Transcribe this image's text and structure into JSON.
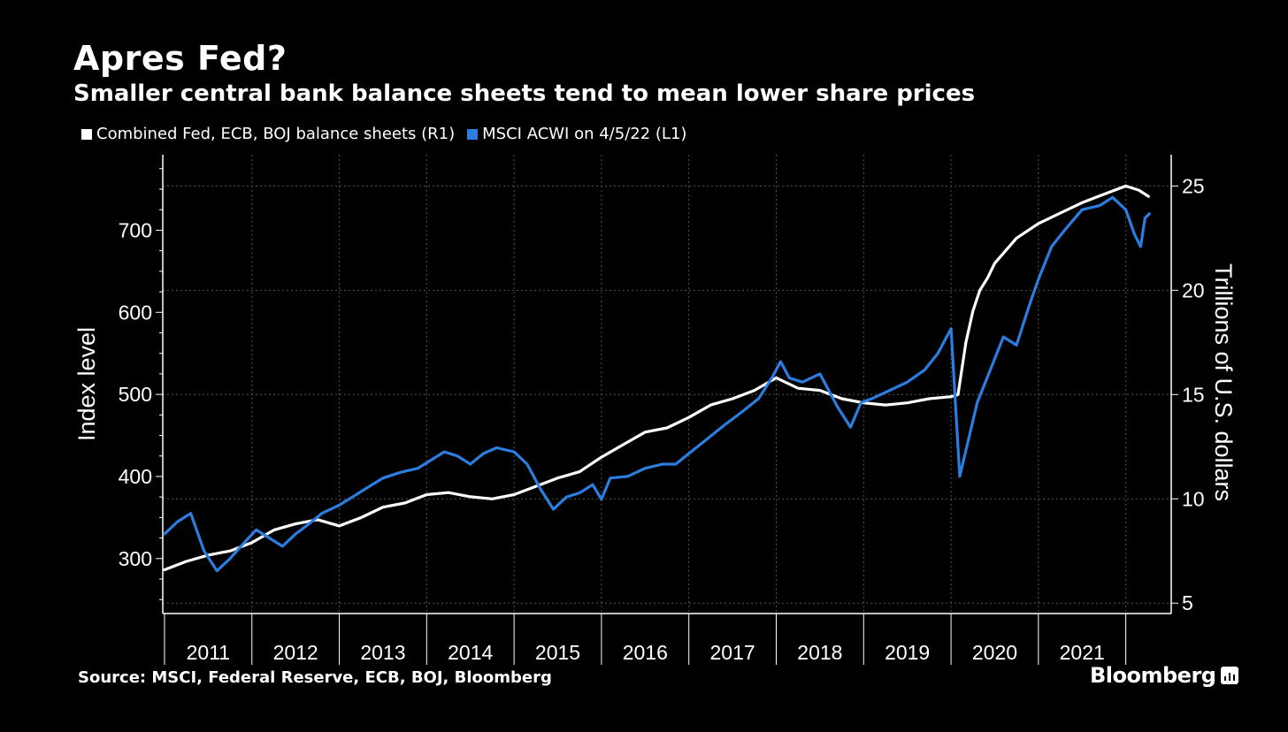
{
  "title": "Apres Fed?",
  "subtitle": "Smaller central bank balance sheets tend to mean lower share prices",
  "source": "Source: MSCI, Federal Reserve, ECB, BOJ, Bloomberg",
  "brand": "Bloomberg",
  "colors": {
    "background": "#000000",
    "balance_sheets": "#ffffff",
    "msci": "#2b7de0",
    "grid": "#555555"
  },
  "chart_data": {
    "type": "line",
    "legend_position": "top-left",
    "grid": true,
    "x_axis": {
      "range": [
        2010.98,
        2022.52
      ],
      "ticks": [
        "2011",
        "2012",
        "2013",
        "2014",
        "2015",
        "2016",
        "2017",
        "2018",
        "2019",
        "2020",
        "2021"
      ]
    },
    "y_left": {
      "label": "Index level",
      "range": [
        233,
        792
      ],
      "ticks": [
        300,
        400,
        500,
        600,
        700
      ]
    },
    "y_right": {
      "label": "Trillions of U.S. dollars",
      "range": [
        4.5,
        26.5
      ],
      "ticks": [
        5,
        10,
        15,
        20,
        25
      ]
    },
    "series": [
      {
        "name": "Combined Fed, ECB, BOJ balance sheets (R1)",
        "axis": "right",
        "color": "#ffffff",
        "x": [
          2011.0,
          2011.25,
          2011.5,
          2011.75,
          2012.0,
          2012.25,
          2012.5,
          2012.75,
          2013.0,
          2013.25,
          2013.5,
          2013.75,
          2014.0,
          2014.25,
          2014.5,
          2014.75,
          2015.0,
          2015.25,
          2015.5,
          2015.75,
          2016.0,
          2016.25,
          2016.5,
          2016.75,
          2017.0,
          2017.25,
          2017.5,
          2017.75,
          2018.0,
          2018.25,
          2018.5,
          2018.75,
          2019.0,
          2019.25,
          2019.5,
          2019.75,
          2020.0,
          2020.08,
          2020.17,
          2020.25,
          2020.33,
          2020.42,
          2020.5,
          2020.75,
          2021.0,
          2021.25,
          2021.5,
          2021.75,
          2022.0,
          2022.15,
          2022.26
        ],
        "y": [
          6.6,
          7.0,
          7.3,
          7.5,
          7.9,
          8.5,
          8.8,
          9.0,
          8.7,
          9.1,
          9.6,
          9.8,
          10.2,
          10.3,
          10.1,
          10.0,
          10.2,
          10.6,
          11.0,
          11.3,
          12.0,
          12.6,
          13.2,
          13.4,
          13.9,
          14.5,
          14.8,
          15.2,
          15.8,
          15.3,
          15.2,
          14.8,
          14.6,
          14.5,
          14.6,
          14.8,
          14.9,
          15.0,
          17.5,
          19.0,
          20.0,
          20.6,
          21.3,
          22.5,
          23.2,
          23.7,
          24.2,
          24.6,
          25.0,
          24.8,
          24.5
        ]
      },
      {
        "name": "MSCI ACWI on 4/5/22 (L1)",
        "axis": "left",
        "color": "#2b7de0",
        "x": [
          2011.0,
          2011.15,
          2011.3,
          2011.45,
          2011.6,
          2011.75,
          2011.9,
          2012.05,
          2012.2,
          2012.35,
          2012.5,
          2012.65,
          2012.8,
          2013.0,
          2013.15,
          2013.3,
          2013.5,
          2013.7,
          2013.9,
          2014.05,
          2014.2,
          2014.35,
          2014.5,
          2014.65,
          2014.8,
          2015.0,
          2015.15,
          2015.3,
          2015.45,
          2015.6,
          2015.75,
          2015.9,
          2016.0,
          2016.1,
          2016.3,
          2016.5,
          2016.7,
          2016.85,
          2017.0,
          2017.2,
          2017.4,
          2017.6,
          2017.8,
          2017.95,
          2018.05,
          2018.15,
          2018.3,
          2018.5,
          2018.7,
          2018.85,
          2018.97,
          2019.1,
          2019.3,
          2019.5,
          2019.7,
          2019.85,
          2020.0,
          2020.1,
          2020.2,
          2020.3,
          2020.45,
          2020.6,
          2020.75,
          2020.9,
          2021.0,
          2021.15,
          2021.3,
          2021.5,
          2021.7,
          2021.85,
          2022.0,
          2022.1,
          2022.17,
          2022.22,
          2022.27
        ],
        "y": [
          330,
          345,
          355,
          310,
          285,
          300,
          318,
          335,
          325,
          315,
          330,
          342,
          355,
          365,
          375,
          385,
          398,
          405,
          410,
          420,
          430,
          425,
          415,
          428,
          435,
          430,
          415,
          385,
          360,
          375,
          380,
          390,
          372,
          398,
          400,
          410,
          415,
          415,
          428,
          445,
          462,
          478,
          495,
          520,
          540,
          520,
          515,
          525,
          485,
          460,
          490,
          495,
          505,
          515,
          530,
          550,
          580,
          400,
          445,
          490,
          530,
          570,
          560,
          610,
          640,
          680,
          700,
          725,
          730,
          740,
          725,
          695,
          680,
          715,
          720
        ]
      }
    ]
  }
}
